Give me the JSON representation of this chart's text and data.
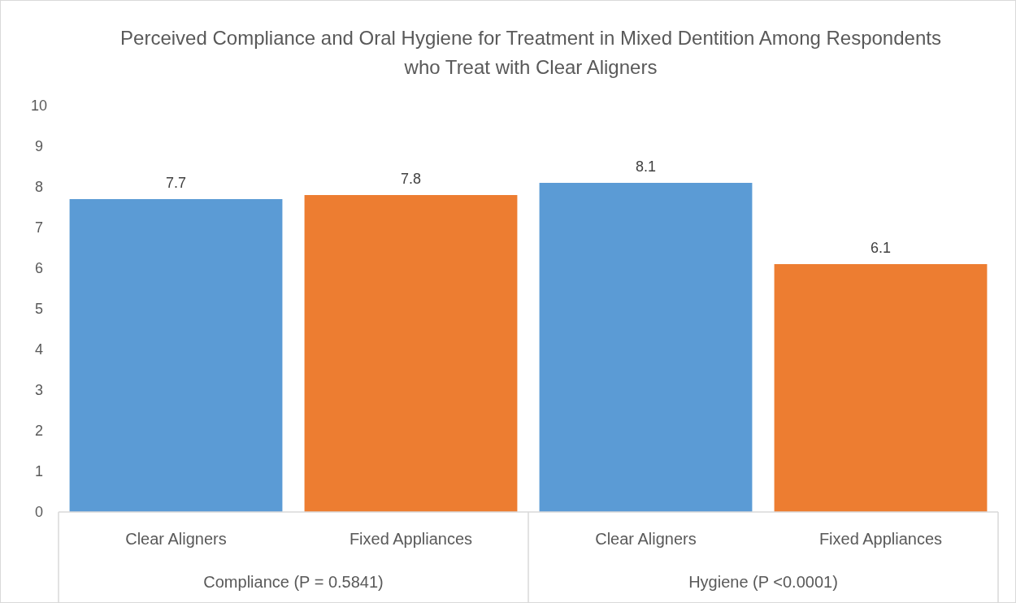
{
  "chart_data": {
    "type": "bar",
    "title": "Perceived Compliance and Oral Hygiene for Treatment in Mixed Dentition Among Respondents who Treat with Clear Aligners",
    "categories": [
      "Clear Aligners",
      "Fixed Appliances",
      "Clear Aligners",
      "Fixed Appliances"
    ],
    "values": [
      7.7,
      7.8,
      8.1,
      6.1
    ],
    "colors": [
      "#5b9bd5",
      "#ed7d31",
      "#5b9bd5",
      "#ed7d31"
    ],
    "ylim": [
      0,
      10
    ],
    "yticks": [
      0,
      1,
      2,
      3,
      4,
      5,
      6,
      7,
      8,
      9,
      10
    ],
    "data_labels": true,
    "annotations": [
      "Compliance (P = 0.5841)",
      "Hygiene (P <0.0001)"
    ]
  }
}
